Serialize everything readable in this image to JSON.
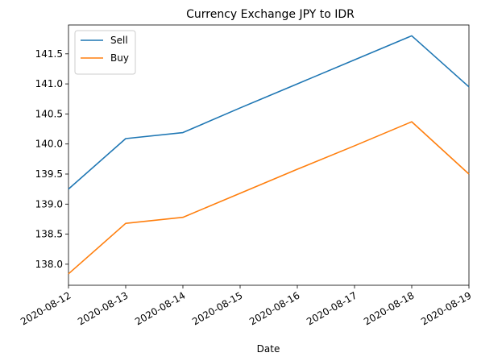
{
  "chart_data": {
    "type": "line",
    "title": "Currency Exchange JPY to IDR",
    "xlabel": "Date",
    "ylabel": "",
    "x": [
      "2020-08-12",
      "2020-08-13",
      "2020-08-14",
      "2020-08-15",
      "2020-08-16",
      "2020-08-17",
      "2020-08-18",
      "2020-08-19"
    ],
    "series": [
      {
        "name": "Sell",
        "color": "#1f77b4",
        "values": [
          139.25,
          140.09,
          140.19,
          140.6,
          141.0,
          141.4,
          141.8,
          140.95
        ]
      },
      {
        "name": "Buy",
        "color": "#ff7f0e",
        "values": [
          137.84,
          138.68,
          138.78,
          139.18,
          139.58,
          139.97,
          140.37,
          139.5
        ]
      }
    ],
    "ylim": [
      137.65,
      141.98
    ],
    "yticks": [
      "138.0",
      "138.5",
      "139.0",
      "139.5",
      "140.0",
      "140.5",
      "141.0",
      "141.5"
    ],
    "grid": false,
    "legend": "top-left"
  }
}
